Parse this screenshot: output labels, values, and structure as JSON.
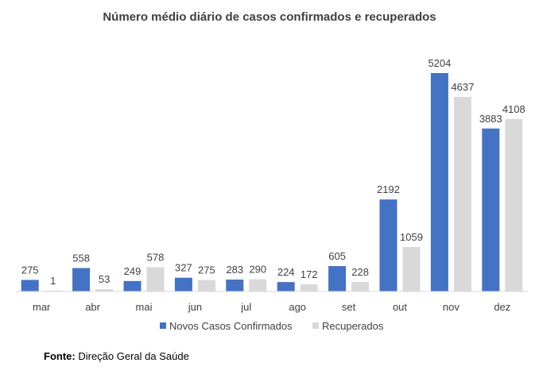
{
  "chart_data": {
    "type": "bar",
    "title": "Número médio diário de casos confirmados e recuperados",
    "categories": [
      "mar",
      "abr",
      "mai",
      "jun",
      "jul",
      "ago",
      "set",
      "out",
      "nov",
      "dez"
    ],
    "series": [
      {
        "name": "Novos Casos Confirmados",
        "color": "#4472C4",
        "values": [
          275,
          558,
          249,
          327,
          283,
          224,
          605,
          2192,
          5204,
          3883
        ]
      },
      {
        "name": "Recuperados",
        "color": "#D9D9D9",
        "values": [
          1,
          53,
          578,
          275,
          290,
          172,
          228,
          1059,
          4637,
          4108
        ]
      }
    ],
    "xlabel": "",
    "ylabel": "",
    "ylim": [
      0,
      5204
    ],
    "grid": false,
    "legend": "bottom-center"
  },
  "source": {
    "label": "Fonte:",
    "text": "Direção Geral da Saúde"
  }
}
